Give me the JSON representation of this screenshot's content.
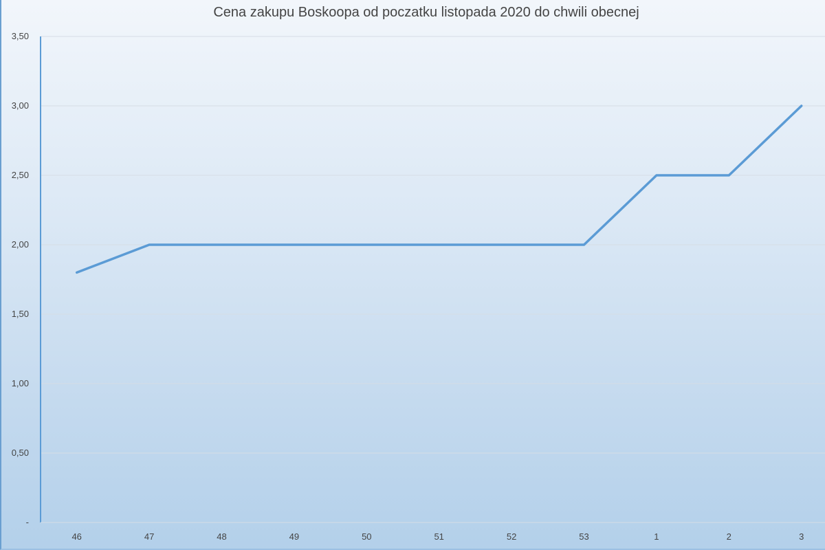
{
  "chart_data": {
    "type": "line",
    "title": "Cena zakupu Boskoopa od poczatku listopada 2020 do chwili obecnej",
    "xlabel": "",
    "ylabel": "",
    "categories": [
      "46",
      "47",
      "48",
      "49",
      "50",
      "51",
      "52",
      "53",
      "1",
      "2",
      "3"
    ],
    "series": [
      {
        "values": [
          1.8,
          2.0,
          2.0,
          2.0,
          2.0,
          2.0,
          2.0,
          2.0,
          2.5,
          2.5,
          3.0
        ]
      }
    ],
    "ylim": [
      0,
      3.5
    ],
    "yticks": [
      "-",
      "0,50",
      "1,00",
      "1,50",
      "2,00",
      "2,50",
      "3,00",
      "3,50"
    ],
    "grid": true,
    "legend": "none",
    "line_color": "#5b9bd5"
  }
}
